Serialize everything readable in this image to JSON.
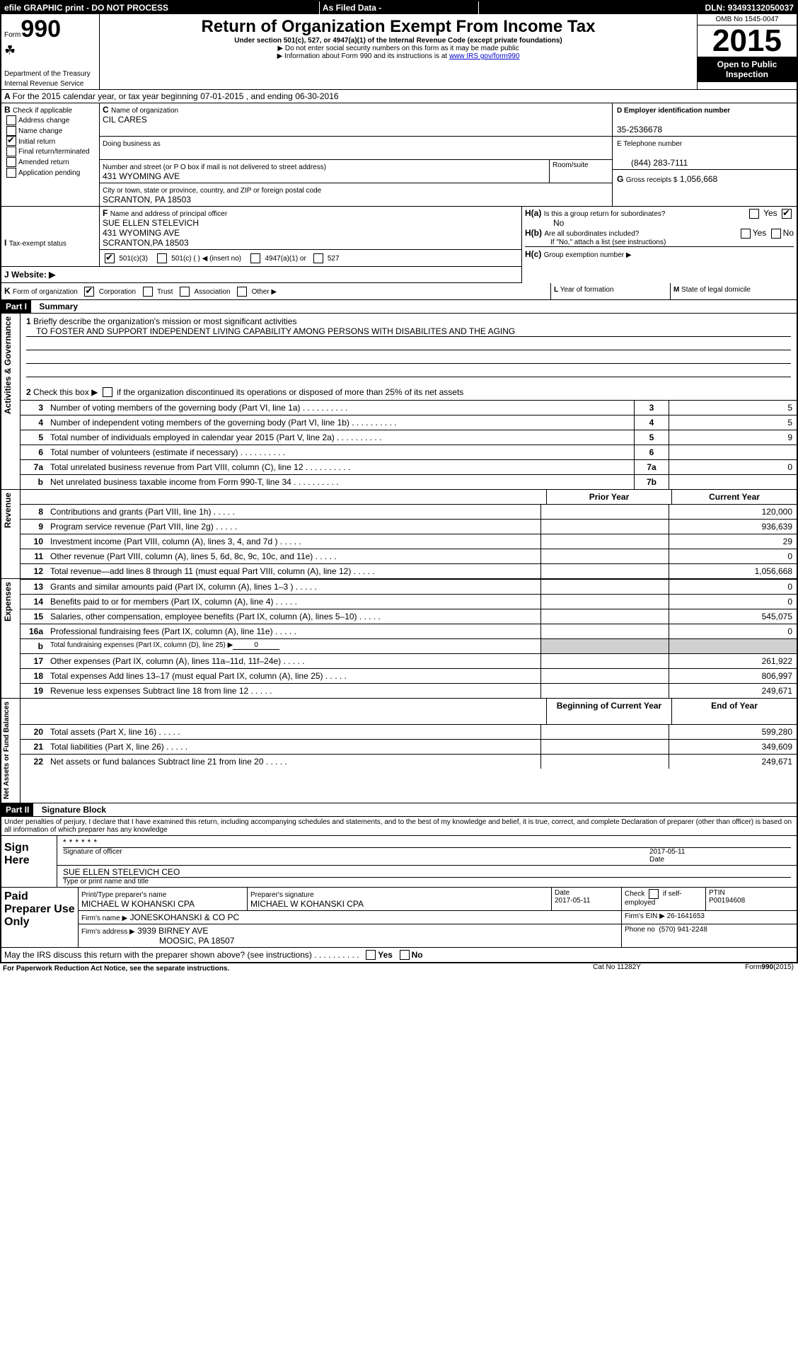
{
  "topbar": {
    "efile": "efile GRAPHIC print - DO NOT PROCESS",
    "asfiled": "As Filed Data -",
    "dln_label": "DLN:",
    "dln": "93493132050037"
  },
  "header": {
    "form_word": "Form",
    "form_no": "990",
    "dept": "Department of the Treasury",
    "irs": "Internal Revenue Service",
    "title": "Return of Organization Exempt From Income Tax",
    "subtitle": "Under section 501(c), 527, or 4947(a)(1) of the Internal Revenue Code (except private foundations)",
    "note1": "Do not enter social security numbers on this form as it may be made public",
    "note2": "Information about Form 990 and its instructions is at ",
    "note2_link": "www IRS gov/form990",
    "omb": "OMB No 1545-0047",
    "year": "2015",
    "open": "Open to Public Inspection"
  },
  "A": {
    "text": "For the 2015 calendar year, or tax year beginning 07-01-2015",
    "text2": ", and ending 06-30-2016"
  },
  "B": {
    "label": "B",
    "check": "Check if applicable",
    "opts": [
      "Address change",
      "Name change",
      "Initial return",
      "Final return/terminated",
      "Amended return",
      "Application pending"
    ],
    "checked_idx": 2
  },
  "C": {
    "label": "C",
    "name_lbl": "Name of organization",
    "name": "CIL CARES",
    "dba_lbl": "Doing business as",
    "addr_lbl": "Number and street (or P O box if mail is not delivered to street address)",
    "room_lbl": "Room/suite",
    "addr": "431 WYOMING AVE",
    "city_lbl": "City or town, state or province, country, and ZIP or foreign postal code",
    "city": "SCRANTON, PA  18503"
  },
  "D": {
    "lbl": "D Employer identification number",
    "val": "35-2536678"
  },
  "E": {
    "lbl": "E Telephone number",
    "val": "(844) 283-7111"
  },
  "G": {
    "lbl": "G",
    "text": "Gross receipts $",
    "val": "1,056,668"
  },
  "F": {
    "lbl": "F",
    "text": "Name and address of principal officer",
    "name": "SUE ELLEN STELEVICH",
    "addr1": "431 WYOMING AVE",
    "addr2": "SCRANTON,PA  18503"
  },
  "H": {
    "a_lbl": "H(a)",
    "a_text": "Is this a group return for subordinates?",
    "a_no": "No",
    "yes": "Yes",
    "no": "No",
    "b_lbl": "H(b)",
    "b_text": "Are all subordinates included?",
    "b_note": "If \"No,\" attach a list (see instructions)",
    "c_lbl": "H(c)",
    "c_text": "Group exemption number ▶"
  },
  "I": {
    "lbl": "I",
    "text": "Tax-exempt status",
    "opts": [
      "501(c)(3)",
      "501(c) (  ) ◀ (insert no)",
      "4947(a)(1) or",
      "527"
    ]
  },
  "J": {
    "lbl": "J",
    "text": "Website: ▶"
  },
  "K": {
    "lbl": "K",
    "text": "Form of organization",
    "opts": [
      "Corporation",
      "Trust",
      "Association",
      "Other ▶"
    ]
  },
  "L": {
    "lbl": "L",
    "text": "Year of formation"
  },
  "M": {
    "lbl": "M",
    "text": "State of legal domicile"
  },
  "part1": {
    "hdr": "Part I",
    "title": "Summary",
    "l1_lbl": "1",
    "l1": "Briefly describe the organization's mission or most significant activities",
    "l1_val": "TO FOSTER AND SUPPORT INDEPENDENT LIVING CAPABILITY AMONG PERSONS WITH DISABILITES AND THE AGING",
    "l2_lbl": "2",
    "l2": "Check this box ▶",
    "l2b": "if the organization discontinued its operations or disposed of more than 25% of its net assets",
    "rows_gov": [
      {
        "n": "3",
        "t": "Number of voting members of the governing body (Part VI, line 1a)",
        "c": "3",
        "v": "5"
      },
      {
        "n": "4",
        "t": "Number of independent voting members of the governing body (Part VI, line 1b)",
        "c": "4",
        "v": "5"
      },
      {
        "n": "5",
        "t": "Total number of individuals employed in calendar year 2015 (Part V, line 2a)",
        "c": "5",
        "v": "9"
      },
      {
        "n": "6",
        "t": "Total number of volunteers (estimate if necessary)",
        "c": "6",
        "v": ""
      },
      {
        "n": "7a",
        "t": "Total unrelated business revenue from Part VIII, column (C), line 12",
        "c": "7a",
        "v": "0"
      },
      {
        "n": "b",
        "t": "Net unrelated business taxable income from Form 990-T, line 34",
        "c": "7b",
        "v": ""
      }
    ],
    "col_prior": "Prior Year",
    "col_curr": "Current Year",
    "rows_rev": [
      {
        "n": "8",
        "t": "Contributions and grants (Part VIII, line 1h)",
        "cv": "120,000"
      },
      {
        "n": "9",
        "t": "Program service revenue (Part VIII, line 2g)",
        "cv": "936,639"
      },
      {
        "n": "10",
        "t": "Investment income (Part VIII, column (A), lines 3, 4, and 7d )",
        "cv": "29"
      },
      {
        "n": "11",
        "t": "Other revenue (Part VIII, column (A), lines 5, 6d, 8c, 9c, 10c, and 11e)",
        "cv": "0"
      },
      {
        "n": "12",
        "t": "Total revenue—add lines 8 through 11 (must equal Part VIII, column (A), line 12)",
        "cv": "1,056,668"
      }
    ],
    "rows_exp": [
      {
        "n": "13",
        "t": "Grants and similar amounts paid (Part IX, column (A), lines 1–3 )",
        "cv": "0"
      },
      {
        "n": "14",
        "t": "Benefits paid to or for members (Part IX, column (A), line 4)",
        "cv": "0"
      },
      {
        "n": "15",
        "t": "Salaries, other compensation, employee benefits (Part IX, column (A), lines 5–10)",
        "cv": "545,075"
      },
      {
        "n": "16a",
        "t": "Professional fundraising fees (Part IX, column (A), line 11e)",
        "cv": "0"
      },
      {
        "n": "b",
        "t": "Total fundraising expenses (Part IX, column (D), line 25) ▶",
        "cv": "",
        "special": "0"
      },
      {
        "n": "17",
        "t": "Other expenses (Part IX, column (A), lines 11a–11d, 11f–24e)",
        "cv": "261,922"
      },
      {
        "n": "18",
        "t": "Total expenses  Add lines 13–17 (must equal Part IX, column (A), line 25)",
        "cv": "806,997"
      },
      {
        "n": "19",
        "t": "Revenue less expenses  Subtract line 18 from line 12",
        "cv": "249,671"
      }
    ],
    "col_beg": "Beginning of Current Year",
    "col_end": "End of Year",
    "rows_net": [
      {
        "n": "20",
        "t": "Total assets (Part X, line 16)",
        "cv": "599,280"
      },
      {
        "n": "21",
        "t": "Total liabilities (Part X, line 26)",
        "cv": "349,609"
      },
      {
        "n": "22",
        "t": "Net assets or fund balances  Subtract line 21 from line 20",
        "cv": "249,671"
      }
    ],
    "vlabels": {
      "gov": "Activities & Governance",
      "rev": "Revenue",
      "exp": "Expenses",
      "net": "Net Assets or Fund Balances"
    }
  },
  "part2": {
    "hdr": "Part II",
    "title": "Signature Block",
    "decl": "Under penalties of perjury, I declare that I have examined this return, including accompanying schedules and statements, and to the best of my knowledge and belief, it is true, correct, and complete  Declaration of preparer (other than officer) is based on all information of which preparer has any knowledge",
    "sign_here": "Sign Here",
    "sig_officer": "Signature of officer",
    "sig_date": "2017-05-11",
    "sig_name": "SUE ELLEN STELEVICH CEO",
    "sig_type": "Type or print name and title",
    "paid": "Paid Preparer Use Only",
    "prep_name_lbl": "Print/Type preparer's name",
    "prep_name": "MICHAEL W KOHANSKI CPA",
    "prep_sig_lbl": "Preparer's signature",
    "prep_sig": "MICHAEL W KOHANSKI CPA",
    "date_lbl": "Date",
    "prep_date": "2017-05-11",
    "self_lbl": "Check",
    "self_lbl2": "if self-employed",
    "ptin_lbl": "PTIN",
    "ptin": "P00194608",
    "firm_name_lbl": "Firm's name    ▶",
    "firm_name": "JONESKOHANSKI & CO PC",
    "firm_ein_lbl": "Firm's EIN ▶",
    "firm_ein": "26-1641653",
    "firm_addr_lbl": "Firm's address ▶",
    "firm_addr": "3939 BIRNEY AVE",
    "firm_addr2": "MOOSIC, PA  18507",
    "phone_lbl": "Phone no",
    "phone": "(570) 941-2248",
    "discuss": "May the IRS discuss this return with the preparer shown above? (see instructions)",
    "yes": "Yes",
    "no": "No"
  },
  "footer": {
    "pra": "For Paperwork Reduction Act Notice, see the separate instructions.",
    "cat": "Cat No 11282Y",
    "form": "Form",
    "formno": "990",
    "formyr": "(2015)"
  },
  "dots": "   .    .    .    .    .    .    .    .    .    ."
}
